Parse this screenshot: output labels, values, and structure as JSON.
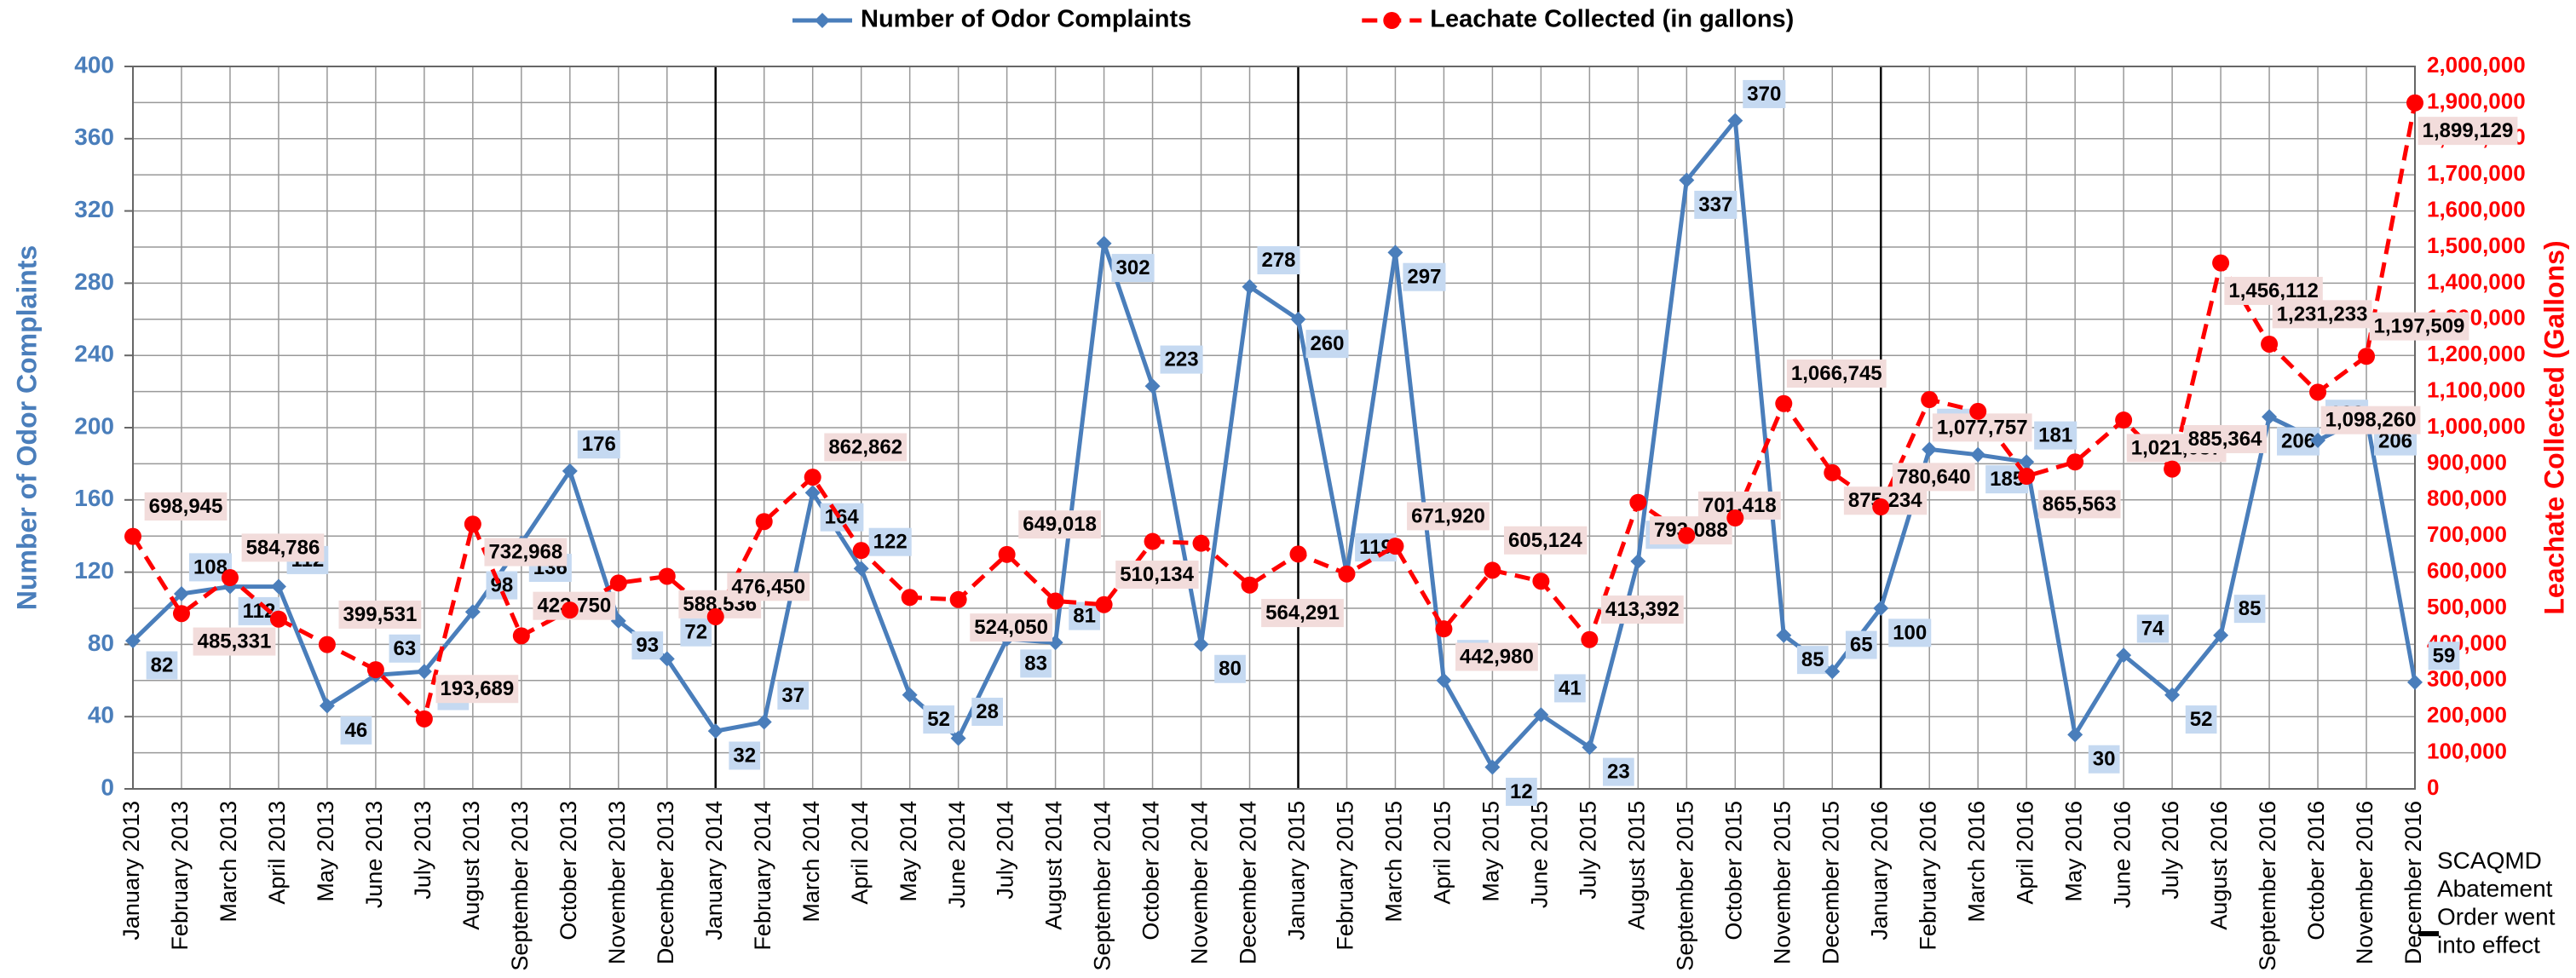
{
  "chart_data": {
    "type": "line",
    "categories": [
      "January 2013",
      "February 2013",
      "March 2013",
      "April 2013",
      "May 2013",
      "June 2013",
      "July 2013",
      "August 2013",
      "September 2013",
      "October 2013",
      "November 2013",
      "December 2013",
      "January 2014",
      "February 2014",
      "March 2014",
      "April 2014",
      "May 2014",
      "June 2014",
      "July 2014",
      "August 2014",
      "September 2014",
      "October 2014",
      "November 2014",
      "December 2014",
      "January 2015",
      "February 2015",
      "March 2015",
      "April 2015",
      "May 2015",
      "June 2015",
      "July 2015",
      "August 2015",
      "September 2015",
      "October 2015",
      "November 2015",
      "December 2015",
      "January 2016",
      "February 2016",
      "March 2016",
      "April 2016",
      "May 2016",
      "June 2016",
      "July 2016",
      "August 2016",
      "September 2016",
      "October 2016",
      "November 2016",
      "December 2016"
    ],
    "series": [
      {
        "name": "Number of Odor Complaints",
        "color": "#4a7ebb",
        "axis": "y",
        "values": [
          82,
          108,
          112,
          112,
          46,
          63,
          65,
          98,
          136,
          176,
          93,
          72,
          32,
          37,
          164,
          122,
          52,
          28,
          83,
          81,
          302,
          223,
          80,
          278,
          260,
          119,
          297,
          60,
          12,
          41,
          23,
          126,
          337,
          370,
          85,
          65,
          100,
          188,
          185,
          181,
          30,
          74,
          52,
          85,
          206,
          193,
          206,
          59
        ]
      },
      {
        "name": "Leachate Collected (in gallons)",
        "color": "#ff0000",
        "axis": "y2",
        "values": [
          698945,
          485331,
          584786,
          470000,
          399531,
          330000,
          193689,
          732968,
          423750,
          495000,
          570000,
          588536,
          476450,
          740000,
          862862,
          660000,
          530000,
          524050,
          649018,
          520000,
          510134,
          685000,
          680000,
          564291,
          650000,
          595000,
          671920,
          442980,
          605124,
          575000,
          413392,
          793088,
          701418,
          750000,
          1066745,
          875234,
          780640,
          1077757,
          1045000,
          865563,
          905000,
          1021087,
          885364,
          1456112,
          1231233,
          1098260,
          1197509,
          1899129
        ],
        "value_labels": [
          "698,945",
          "485,331",
          "584,786",
          null,
          "399,531",
          null,
          "193,689",
          "732,968",
          "423,750",
          null,
          null,
          "588,536",
          "476,450",
          null,
          "862,862",
          null,
          null,
          "524,050",
          "649,018",
          null,
          "510,134",
          null,
          null,
          "564,291",
          null,
          null,
          "671,920",
          "442,980",
          "605,124",
          null,
          "413,392",
          "793,088",
          "701,418",
          null,
          "1,066,745",
          "875,234",
          "780,640",
          "1,077,757",
          null,
          "865,563",
          null,
          "1,021,087",
          "885,364",
          "1,456,112",
          "1,231,233",
          "1,098,260",
          "1,197,509",
          "1,899,129"
        ]
      }
    ],
    "ylabel": "Number of Odor Complaints",
    "y2label": "Leachate Collected (Gallons)",
    "ylim": [
      0,
      400
    ],
    "yticks": [
      0,
      40,
      80,
      120,
      160,
      200,
      240,
      280,
      320,
      360,
      400
    ],
    "y2lim": [
      0,
      2000000
    ],
    "y2ticks": [
      0,
      {
        "value": 100000,
        "label": "100,000"
      },
      {
        "value": 200000,
        "label": "200,000"
      },
      {
        "value": 300000,
        "label": "300,000"
      },
      {
        "value": 400000,
        "label": "400,000"
      },
      {
        "value": 500000,
        "label": "500,000"
      },
      {
        "value": 600000,
        "label": "600,000"
      },
      {
        "value": 700000,
        "label": "700,000"
      },
      {
        "value": 800000,
        "label": "800,000"
      },
      {
        "value": 900000,
        "label": "900,000"
      },
      {
        "value": 1000000,
        "label": "1,000,000"
      },
      {
        "value": 1100000,
        "label": "1,100,000"
      },
      {
        "value": 1200000,
        "label": "1,200,000"
      },
      {
        "value": 1300000,
        "label": "1,300,000"
      },
      {
        "value": 1400000,
        "label": "1,400,000"
      },
      {
        "value": 1500000,
        "label": "1,500,000"
      },
      {
        "value": 1600000,
        "label": "1,600,000"
      },
      {
        "value": 1700000,
        "label": "1,700,000"
      },
      {
        "value": 1800000,
        "label": "1,800,000"
      },
      {
        "value": 1900000,
        "label": "1,900,000"
      },
      {
        "value": 2000000,
        "label": "2,000,000"
      }
    ],
    "grid": true,
    "legend": "top",
    "annotation": [
      "SCAQMD",
      "Abatement",
      "Order went",
      "into effect"
    ]
  }
}
